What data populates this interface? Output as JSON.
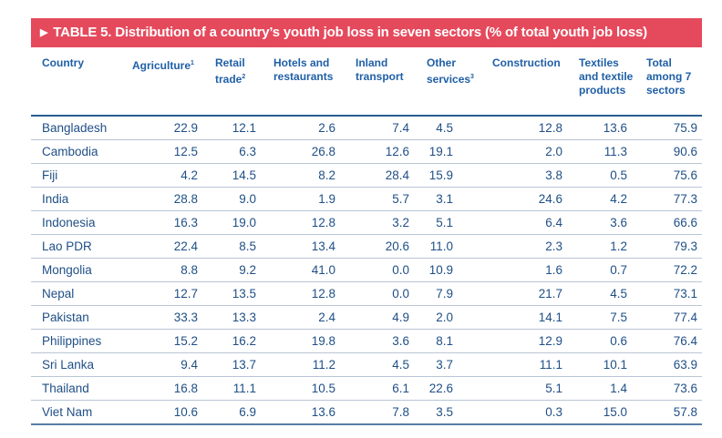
{
  "title": "TABLE 5. Distribution of a country’s youth job loss in seven sectors (% of total youth job loss)",
  "colors": {
    "title_bar": "#e5495c",
    "header_text": "#1f5fa6",
    "body_text": "#1f4f86"
  },
  "headers": [
    {
      "label": "Country",
      "sup": ""
    },
    {
      "label": "Agriculture",
      "sup": "1"
    },
    {
      "label": "Retail trade",
      "sup": "2"
    },
    {
      "label": "Hotels and restaurants",
      "sup": ""
    },
    {
      "label": "Inland transport",
      "sup": ""
    },
    {
      "label": "Other services",
      "sup": "3"
    },
    {
      "label": "Construction",
      "sup": ""
    },
    {
      "label": "Textiles and textile products",
      "sup": ""
    },
    {
      "label": "Total among 7 sectors",
      "sup": ""
    }
  ],
  "rows": [
    [
      "Bangladesh",
      "22.9",
      "12.1",
      "2.6",
      "7.4",
      "4.5",
      "12.8",
      "13.6",
      "75.9"
    ],
    [
      "Cambodia",
      "12.5",
      "6.3",
      "26.8",
      "12.6",
      "19.1",
      "2.0",
      "11.3",
      "90.6"
    ],
    [
      "Fiji",
      "4.2",
      "14.5",
      "8.2",
      "28.4",
      "15.9",
      "3.8",
      "0.5",
      "75.6"
    ],
    [
      "India",
      "28.8",
      "9.0",
      "1.9",
      "5.7",
      "3.1",
      "24.6",
      "4.2",
      "77.3"
    ],
    [
      "Indonesia",
      "16.3",
      "19.0",
      "12.8",
      "3.2",
      "5.1",
      "6.4",
      "3.6",
      "66.6"
    ],
    [
      "Lao PDR",
      "22.4",
      "8.5",
      "13.4",
      "20.6",
      "11.0",
      "2.3",
      "1.2",
      "79.3"
    ],
    [
      "Mongolia",
      "8.8",
      "9.2",
      "41.0",
      "0.0",
      "10.9",
      "1.6",
      "0.7",
      "72.2"
    ],
    [
      "Nepal",
      "12.7",
      "13.5",
      "12.8",
      "0.0",
      "7.9",
      "21.7",
      "4.5",
      "73.1"
    ],
    [
      "Pakistan",
      "33.3",
      "13.3",
      "2.4",
      "4.9",
      "2.0",
      "14.1",
      "7.5",
      "77.4"
    ],
    [
      "Philippines",
      "15.2",
      "16.2",
      "19.8",
      "3.6",
      "8.1",
      "12.9",
      "0.6",
      "76.4"
    ],
    [
      "Sri Lanka",
      "9.4",
      "13.7",
      "11.2",
      "4.5",
      "3.7",
      "11.1",
      "10.1",
      "63.9"
    ],
    [
      "Thailand",
      "16.8",
      "11.1",
      "10.5",
      "6.1",
      "22.6",
      "5.1",
      "1.4",
      "73.6"
    ],
    [
      "Viet Nam",
      "10.6",
      "6.9",
      "13.6",
      "7.8",
      "3.5",
      "0.3",
      "15.0",
      "57.8"
    ]
  ]
}
